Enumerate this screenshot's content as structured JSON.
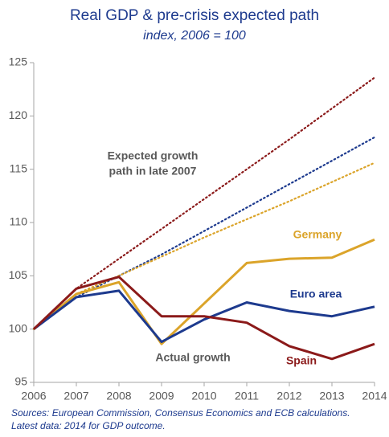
{
  "chart_data": {
    "type": "line",
    "title": "Real GDP & pre-crisis expected path",
    "subtitle": "index,  2006 = 100",
    "x": [
      2006,
      2007,
      2008,
      2009,
      2010,
      2011,
      2012,
      2013,
      2014
    ],
    "xlim": [
      2006,
      2014
    ],
    "xticks": [
      2006,
      2007,
      2008,
      2009,
      2010,
      2011,
      2012,
      2013,
      2014
    ],
    "ylim": [
      95,
      125
    ],
    "yticks": [
      95,
      100,
      105,
      110,
      115,
      120,
      125
    ],
    "grid": false,
    "series": [
      {
        "name": "Germany",
        "color": "#dba42a",
        "values": [
          100,
          103.3,
          104.4,
          98.6,
          102.4,
          106.2,
          106.6,
          106.7,
          108.4
        ]
      },
      {
        "name": "Euro area",
        "color": "#1d3a8e",
        "values": [
          100,
          103.0,
          103.6,
          98.8,
          100.9,
          102.5,
          101.7,
          101.2,
          102.1
        ]
      },
      {
        "name": "Spain",
        "color": "#8b1a1a",
        "values": [
          100,
          103.8,
          104.9,
          101.2,
          101.2,
          100.6,
          98.4,
          97.2,
          98.6
        ]
      }
    ],
    "expected_series": [
      {
        "color": "#8b1a1a",
        "values": [
          100,
          103.8,
          106.6,
          109.4,
          112.2,
          115.0,
          117.8,
          120.7,
          123.6
        ]
      },
      {
        "color": "#1d3a8e",
        "values": [
          100,
          103.0,
          105.0,
          107.0,
          109.2,
          111.4,
          113.6,
          115.8,
          118.0
        ]
      },
      {
        "color": "#dba42a",
        "values": [
          100,
          103.3,
          105.0,
          106.8,
          108.6,
          110.3,
          112.0,
          113.8,
          115.6
        ]
      }
    ],
    "annotations": {
      "expected": [
        "Expected growth",
        "path in late 2007"
      ],
      "actual": "Actual growth"
    },
    "footnote": [
      "Sources: European Commission, Consensus Economics and ECB calculations.",
      "Latest data: 2014 for GDP outcome."
    ]
  }
}
